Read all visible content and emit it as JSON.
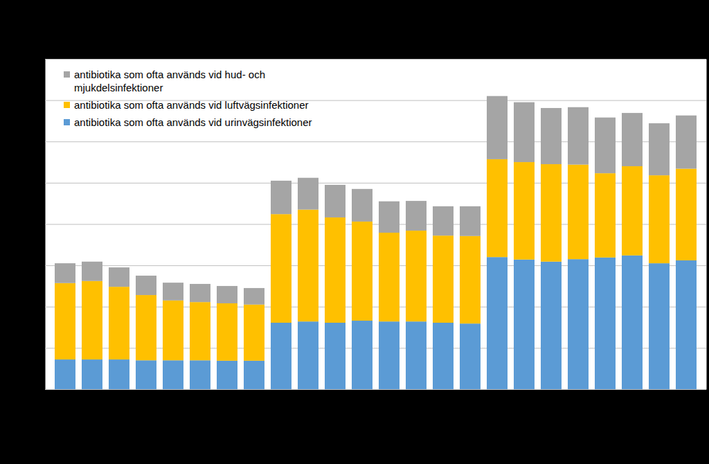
{
  "chart_data": {
    "type": "bar",
    "stacked": true,
    "grid": true,
    "tick_labels": false,
    "legend": "upper left",
    "categories": [
      null,
      null,
      null,
      null,
      null,
      null,
      null,
      null,
      null,
      null,
      null,
      null,
      null,
      null,
      null,
      null,
      null,
      null,
      null,
      null,
      null,
      null,
      null,
      null
    ],
    "ylim": [
      0,
      8
    ],
    "yticks": [
      0,
      1,
      2,
      3,
      4,
      5,
      6,
      7,
      8
    ],
    "series": [
      {
        "name": "antibiotika som ofta används vid urinvägsinfektioner",
        "color": "#5b9bd5",
        "values": [
          0.72,
          0.72,
          0.72,
          0.7,
          0.7,
          0.7,
          0.69,
          0.69,
          1.61,
          1.64,
          1.61,
          1.66,
          1.64,
          1.64,
          1.61,
          1.59,
          3.2,
          3.14,
          3.09,
          3.15,
          3.19,
          3.24,
          3.05,
          3.12
        ]
      },
      {
        "name": "antibiotika som ofta används vid luftvägsinfektioner",
        "color": "#ffc000",
        "values": [
          1.85,
          1.9,
          1.76,
          1.58,
          1.45,
          1.41,
          1.39,
          1.36,
          2.63,
          2.71,
          2.55,
          2.4,
          2.15,
          2.2,
          2.11,
          2.12,
          2.37,
          2.36,
          2.36,
          2.29,
          2.04,
          2.16,
          2.13,
          2.22
        ]
      },
      {
        "name": "antibiotika som ofta används vid hud- och mjukdelsinfektioner",
        "color": "#a5a5a5",
        "values": [
          0.48,
          0.47,
          0.47,
          0.47,
          0.43,
          0.44,
          0.42,
          0.4,
          0.81,
          0.77,
          0.79,
          0.79,
          0.76,
          0.72,
          0.71,
          0.72,
          1.53,
          1.45,
          1.36,
          1.39,
          1.35,
          1.29,
          1.26,
          1.29
        ]
      }
    ]
  }
}
